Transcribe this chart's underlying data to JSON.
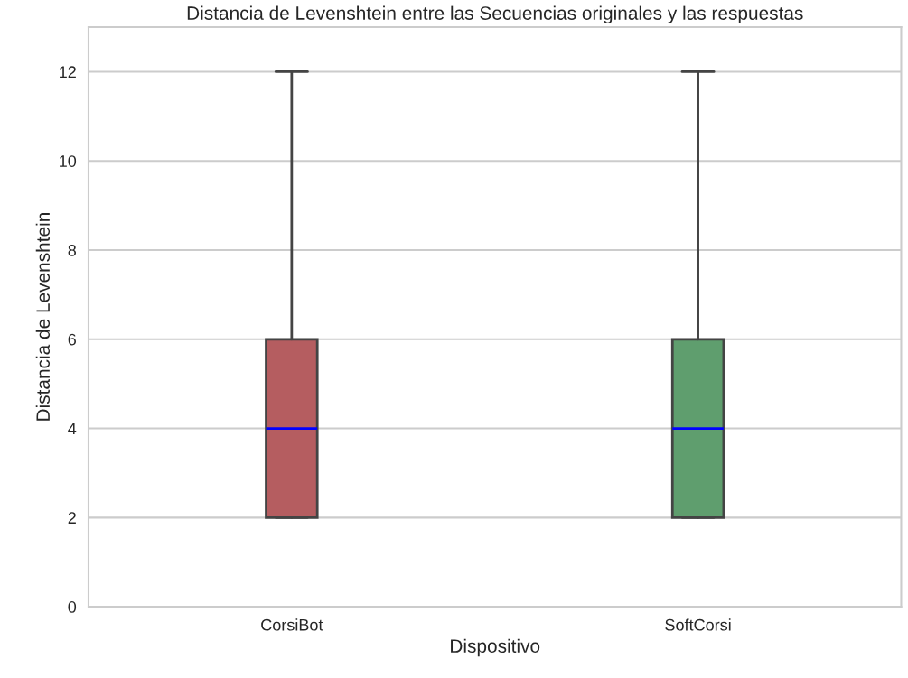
{
  "chart_data": {
    "type": "box",
    "title": "Distancia de Levenshtein entre las Secuencias originales y las respuestas",
    "xlabel": "Dispositivo",
    "ylabel": "Distancia de Levenshtein",
    "categories": [
      "CorsiBot",
      "SoftCorsi"
    ],
    "colors": [
      "#b55d60",
      "#5f9e6e"
    ],
    "boxes": [
      {
        "low": 2,
        "q1": 2,
        "median": 4,
        "q3": 6,
        "high": 12
      },
      {
        "low": 2,
        "q1": 2,
        "median": 4,
        "q3": 6,
        "high": 12
      }
    ],
    "ylim": [
      0,
      13
    ],
    "yticks": [
      0,
      2,
      4,
      6,
      8,
      10,
      12
    ],
    "grid": "y"
  }
}
